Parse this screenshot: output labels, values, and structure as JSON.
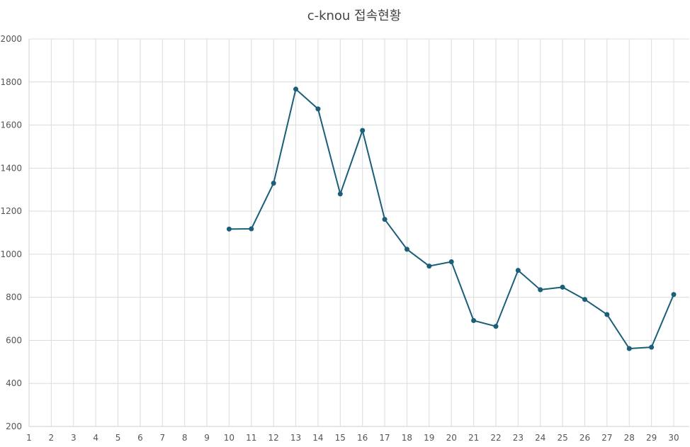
{
  "chart_data": {
    "type": "line",
    "title": "c-knou 접속현황",
    "xlabel": "",
    "ylabel": "",
    "x": [
      "1",
      "2",
      "3",
      "4",
      "5",
      "6",
      "7",
      "8",
      "9",
      "10",
      "11",
      "12",
      "13",
      "14",
      "15",
      "16",
      "17",
      "18",
      "19",
      "20",
      "21",
      "22",
      "23",
      "24",
      "25",
      "26",
      "27",
      "28",
      "29",
      "30"
    ],
    "ylim": [
      200,
      2000
    ],
    "yticks": [
      200,
      400,
      600,
      800,
      1000,
      1200,
      1400,
      1600,
      1800,
      2000
    ],
    "grid": true,
    "legend": "none",
    "series": [
      {
        "name": "",
        "color": "#1a5e78",
        "values": [
          null,
          null,
          null,
          null,
          null,
          null,
          null,
          null,
          null,
          1117,
          1118,
          1330,
          1767,
          1675,
          1280,
          1575,
          1162,
          1023,
          945,
          965,
          692,
          665,
          925,
          835,
          847,
          790,
          720,
          562,
          568,
          813
        ]
      }
    ]
  }
}
